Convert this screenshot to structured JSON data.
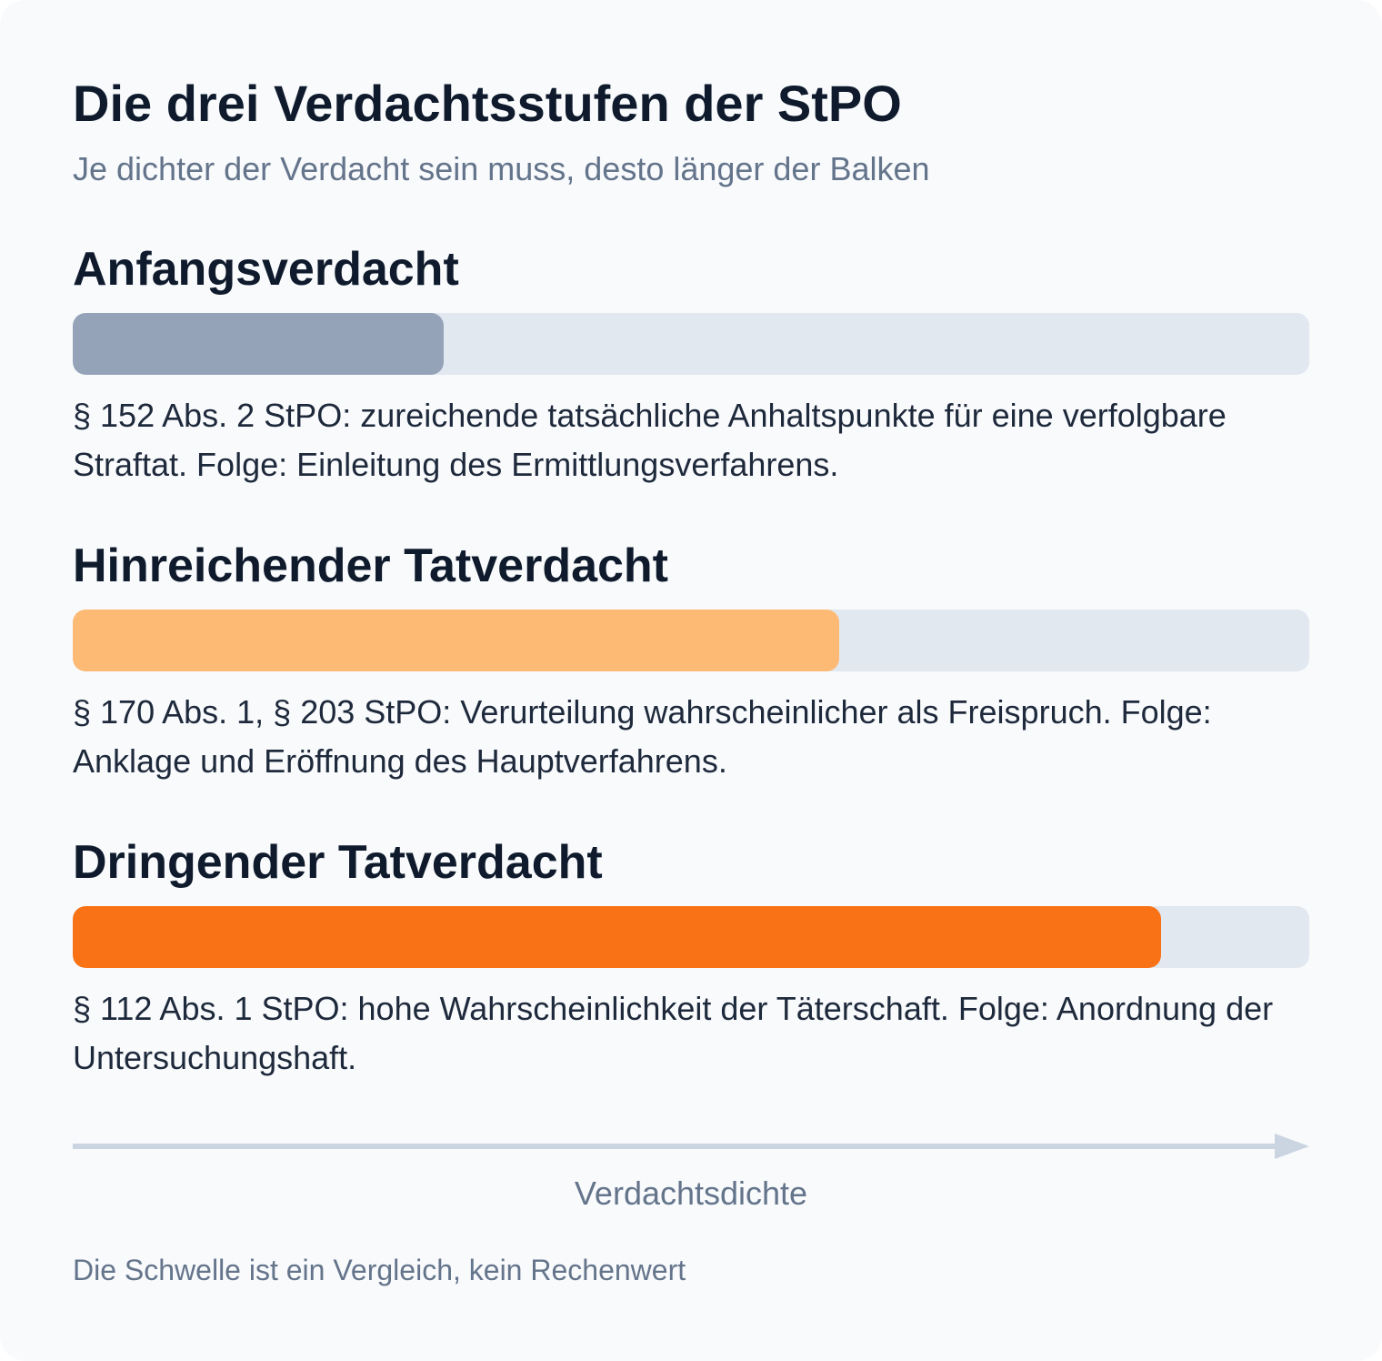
{
  "title": "Die drei Verdachtsstufen der StPO",
  "subtitle": "Je dichter der Verdacht sein muss, desto länger der Balken",
  "axis_label": "Verdachtsdichte",
  "footnote": "Die Schwelle ist ein Vergleich, kein Rechenwert",
  "colors": {
    "track": "#e2e8f0",
    "axis": "#cbd5e1"
  },
  "chart_data": {
    "type": "bar",
    "orientation": "horizontal",
    "xlabel": "Verdachtsdichte",
    "xlim": [
      0,
      100
    ],
    "grid": false,
    "bars": [
      {
        "label": "Anfangsverdacht",
        "value": 30,
        "color": "#94a3b8",
        "description": "§ 152 Abs. 2 StPO: zureichende tatsächliche Anhaltspunkte für eine verfolgbare Straftat. Folge: Einleitung des Ermittlungsverfahrens."
      },
      {
        "label": "Hinreichender Tatverdacht",
        "value": 62,
        "color": "#fdba74",
        "description": "§ 170 Abs. 1, § 203 StPO: Verurteilung wahrscheinlicher als Freispruch. Folge: Anklage und Eröffnung des Hauptverfahrens."
      },
      {
        "label": "Dringender Tatverdacht",
        "value": 88,
        "color": "#f97316",
        "description": "§ 112 Abs. 1 StPO: hohe Wahrscheinlichkeit der Täterschaft. Folge: Anordnung der Untersuchungshaft."
      }
    ]
  }
}
